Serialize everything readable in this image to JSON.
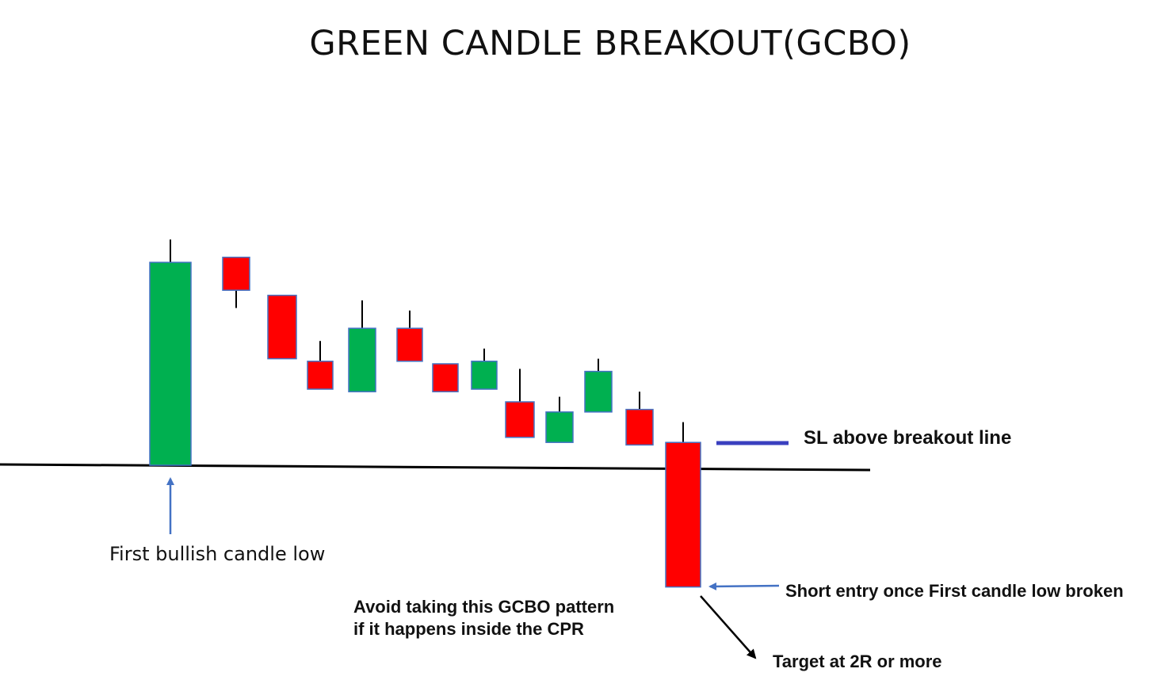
{
  "title": "GREEN CANDLE BREAKOUT(GCBO)",
  "annotations": {
    "first_low": "First bullish candle low",
    "sl": "SL above breakout line",
    "short_entry": "Short entry once First candle low broken",
    "avoid_line1": "Avoid taking this GCBO pattern",
    "avoid_line2": "if it happens inside the CPR",
    "target": "Target at 2R or more"
  },
  "colors": {
    "bullish": "#00b050",
    "bearish": "#ff0000",
    "candle_border": "#4472c4",
    "wick": "#000000",
    "breakout_line": "#000000",
    "sl_line": "#3a3fbf",
    "pointer_arrow": "#4472c4",
    "target_arrow": "#000000"
  },
  "candles": [
    {
      "type": "bullish",
      "open": 100,
      "close": 180,
      "high": 189,
      "low": 100
    },
    {
      "type": "bearish",
      "open": 182,
      "close": 169,
      "high": 182,
      "low": 162
    },
    {
      "type": "bearish",
      "open": 167,
      "close": 142,
      "high": 167,
      "low": 142
    },
    {
      "type": "bearish",
      "open": 141,
      "close": 130,
      "high": 149,
      "low": 130
    },
    {
      "type": "bullish",
      "open": 129,
      "close": 154,
      "high": 165,
      "low": 129
    },
    {
      "type": "bearish",
      "open": 154,
      "close": 141,
      "high": 161,
      "low": 141
    },
    {
      "type": "bearish",
      "open": 140,
      "close": 129,
      "high": 140,
      "low": 129
    },
    {
      "type": "bullish",
      "open": 130,
      "close": 141,
      "high": 146,
      "low": 130
    },
    {
      "type": "bearish",
      "open": 125,
      "close": 111,
      "high": 138,
      "low": 111
    },
    {
      "type": "bullish",
      "open": 109,
      "close": 121,
      "high": 127,
      "low": 109
    },
    {
      "type": "bullish",
      "open": 121,
      "close": 137,
      "high": 142,
      "low": 121
    },
    {
      "type": "bearish",
      "open": 122,
      "close": 108,
      "high": 129,
      "low": 108
    },
    {
      "type": "bearish",
      "open": 109,
      "close": 52,
      "high": 117,
      "low": 52
    }
  ]
}
